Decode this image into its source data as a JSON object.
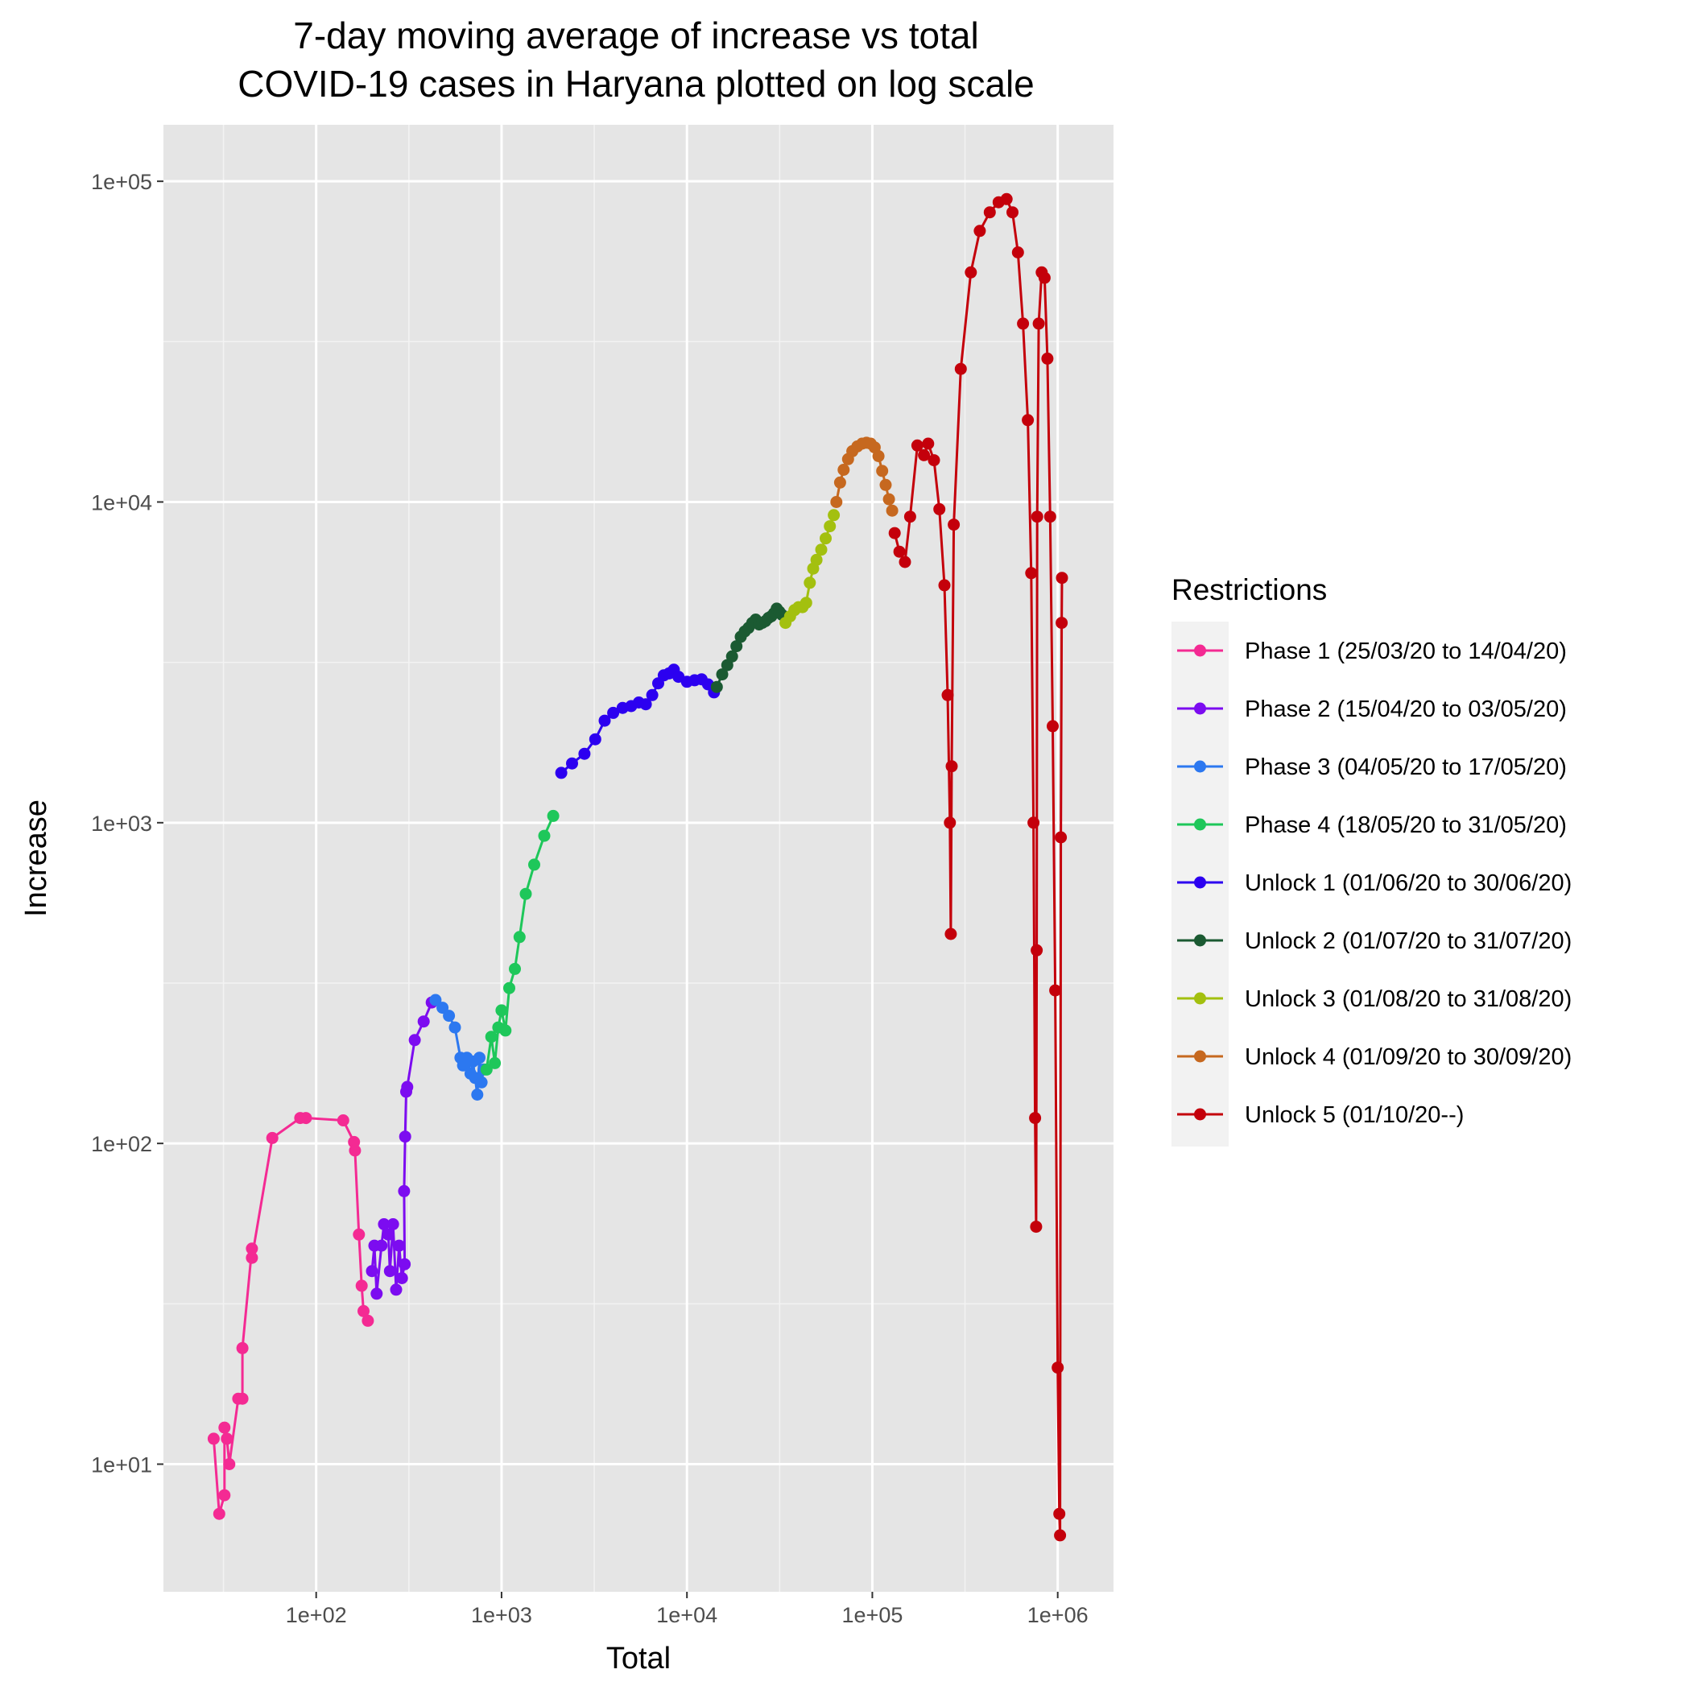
{
  "chart_data": {
    "type": "line",
    "title_line1": "7-day moving average of increase vs total",
    "title_line2": "COVID-19 cases in Haryana plotted on log scale",
    "xlabel": "Total",
    "ylabel": "Increase",
    "x_scale": "log10",
    "y_scale": "log10",
    "xlim": [
      15,
      2000000
    ],
    "ylim": [
      4,
      150000
    ],
    "x_ticks": [
      {
        "value": 100,
        "label": "1e+02"
      },
      {
        "value": 1000,
        "label": "1e+03"
      },
      {
        "value": 10000,
        "label": "1e+04"
      },
      {
        "value": 100000,
        "label": "1e+05"
      },
      {
        "value": 1000000,
        "label": "1e+06"
      }
    ],
    "y_ticks": [
      {
        "value": 10,
        "label": "1e+01"
      },
      {
        "value": 100,
        "label": "1e+02"
      },
      {
        "value": 1000,
        "label": "1e+03"
      },
      {
        "value": 10000,
        "label": "1e+04"
      },
      {
        "value": 100000,
        "label": "1e+05"
      }
    ],
    "grid": true,
    "panel_background": "#e5e5e5",
    "legend": {
      "title": "Restrictions",
      "position": "right"
    },
    "series": [
      {
        "name": "Phase 1 (25/03/20 to 14/04/20)",
        "color": "#f42a93",
        "x": [
          28,
          30,
          32,
          32,
          33,
          34,
          38,
          40,
          40,
          45,
          45,
          58,
          82,
          88,
          140,
          160,
          162,
          170,
          176,
          180,
          190
        ],
        "y": [
          12,
          7,
          8,
          13,
          12,
          10,
          16,
          16,
          23,
          47,
          44,
          104,
          120,
          120,
          118,
          101,
          95,
          52,
          36,
          30,
          28
        ]
      },
      {
        "name": "Phase 2 (15/04/20 to 03/05/20)",
        "color": "#7c0cf0",
        "x": [
          200,
          206,
          212,
          225,
          232,
          245,
          250,
          260,
          270,
          280,
          290,
          300,
          298,
          302,
          306,
          310,
          340,
          380,
          420
        ],
        "y": [
          40,
          48,
          34,
          48,
          56,
          52,
          40,
          56,
          35,
          48,
          38,
          42,
          71,
          105,
          145,
          150,
          210,
          240,
          275
        ]
      },
      {
        "name": "Phase 3 (04/05/20 to 17/05/20)",
        "color": "#2c78f0",
        "x": [
          440,
          480,
          520,
          560,
          600,
          620,
          650,
          680,
          700,
          720,
          740,
          760,
          780,
          800
        ],
        "y": [
          280,
          265,
          250,
          230,
          185,
          175,
          185,
          165,
          180,
          160,
          142,
          185,
          155,
          170
        ]
      },
      {
        "name": "Phase 4 (18/05/20 to 31/05/20)",
        "color": "#1ec75a",
        "x": [
          830,
          880,
          920,
          960,
          1000,
          1050,
          1100,
          1180,
          1250,
          1350,
          1500,
          1700,
          1900
        ],
        "y": [
          170,
          215,
          178,
          230,
          260,
          225,
          305,
          350,
          440,
          600,
          740,
          910,
          1050
        ]
      },
      {
        "name": "Unlock 1 (01/06/20 to 30/06/20)",
        "color": "#2c00f0",
        "x": [
          2100,
          2400,
          2800,
          3200,
          3600,
          4000,
          4500,
          5000,
          5500,
          6000,
          6500,
          7000,
          7500,
          8000,
          8500,
          9000,
          10000,
          11000,
          12000,
          13000,
          14000
        ],
        "y": [
          1430,
          1530,
          1640,
          1820,
          2080,
          2200,
          2280,
          2310,
          2370,
          2340,
          2500,
          2720,
          2880,
          2920,
          3000,
          2850,
          2750,
          2780,
          2800,
          2700,
          2550
        ]
      },
      {
        "name": "Unlock 2 (01/07/20 to 31/07/20)",
        "color": "#1b5a32",
        "x": [
          14500,
          15500,
          16500,
          17500,
          18500,
          19500,
          20500,
          21500,
          22500,
          23500,
          24500,
          25500,
          26500,
          27500,
          28500,
          29500,
          30500,
          31500,
          32500
        ],
        "y": [
          2650,
          2900,
          3100,
          3300,
          3550,
          3800,
          3950,
          4050,
          4200,
          4300,
          4150,
          4200,
          4250,
          4350,
          4400,
          4500,
          4650,
          4550,
          4450
        ]
      },
      {
        "name": "Unlock 3 (01/08/20 to 31/08/20)",
        "color": "#a3c00f",
        "x": [
          34000,
          36000,
          38000,
          40000,
          42000,
          44000,
          46000,
          48000,
          50000,
          53000,
          56000,
          59000,
          62000
        ],
        "y": [
          4200,
          4400,
          4600,
          4700,
          4700,
          4850,
          5600,
          6200,
          6600,
          7100,
          7700,
          8400,
          9100
        ]
      },
      {
        "name": "Unlock 4 (01/09/20 to 30/09/20)",
        "color": "#c6681f",
        "x": [
          64000,
          67000,
          70000,
          74000,
          78000,
          83000,
          88000,
          93000,
          98000,
          103000,
          108000,
          113000,
          118000,
          123000,
          128000
        ],
        "y": [
          10000,
          11500,
          12600,
          13600,
          14400,
          14900,
          15200,
          15300,
          15200,
          14800,
          13900,
          12500,
          11300,
          10200,
          9400
        ]
      },
      {
        "name": "Unlock 5 (01/10/20--)",
        "color": "#c4000b",
        "x": [
          132000,
          140000,
          150000,
          160000,
          175000,
          190000,
          200000,
          215000,
          230000,
          245000,
          255000,
          262000,
          265000,
          268000,
          275000,
          300000,
          340000,
          380000,
          430000,
          480000,
          530000,
          570000,
          610000,
          650000,
          690000,
          720000,
          740000,
          755000,
          765000,
          770000,
          775000,
          790000,
          820000,
          850000,
          880000,
          910000,
          940000,
          970000,
          1000000,
          1020000,
          1030000,
          1040000,
          1050000,
          1055000
        ],
        "y": [
          8000,
          7000,
          6500,
          9000,
          15000,
          14000,
          15200,
          13500,
          9500,
          5500,
          2500,
          1000,
          450,
          1500,
          8500,
          26000,
          52000,
          70000,
          80000,
          86000,
          88000,
          80000,
          60000,
          36000,
          18000,
          6000,
          1000,
          120,
          55,
          400,
          9000,
          36000,
          52000,
          50000,
          28000,
          9000,
          2000,
          300,
          20,
          7,
          6,
          900,
          4200,
          5800
        ]
      }
    ]
  }
}
